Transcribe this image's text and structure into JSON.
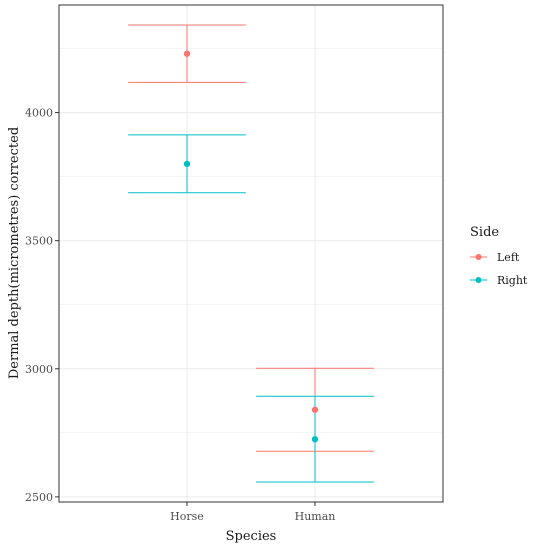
{
  "chart_data": {
    "type": "scatter",
    "xlabel": "Species",
    "ylabel": "Dermal depth(micrometres) corrected",
    "categories": [
      "Horse",
      "Human"
    ],
    "ylim": [
      2480,
      4420
    ],
    "yticks": [
      2500,
      3000,
      3500,
      4000
    ],
    "grid": true,
    "legend": {
      "title": "Side",
      "placement": "right"
    },
    "series": [
      {
        "name": "Left",
        "color": "#F8766D",
        "points": [
          {
            "x": "Horse",
            "y": 4230,
            "ymin": 4118,
            "ymax": 4342
          },
          {
            "x": "Human",
            "y": 2840,
            "ymin": 2678,
            "ymax": 3002
          }
        ]
      },
      {
        "name": "Right",
        "color": "#00BFC4",
        "points": [
          {
            "x": "Horse",
            "y": 3800,
            "ymin": 3687,
            "ymax": 3913
          },
          {
            "x": "Human",
            "y": 2725,
            "ymin": 2558,
            "ymax": 2893
          }
        ]
      }
    ]
  }
}
